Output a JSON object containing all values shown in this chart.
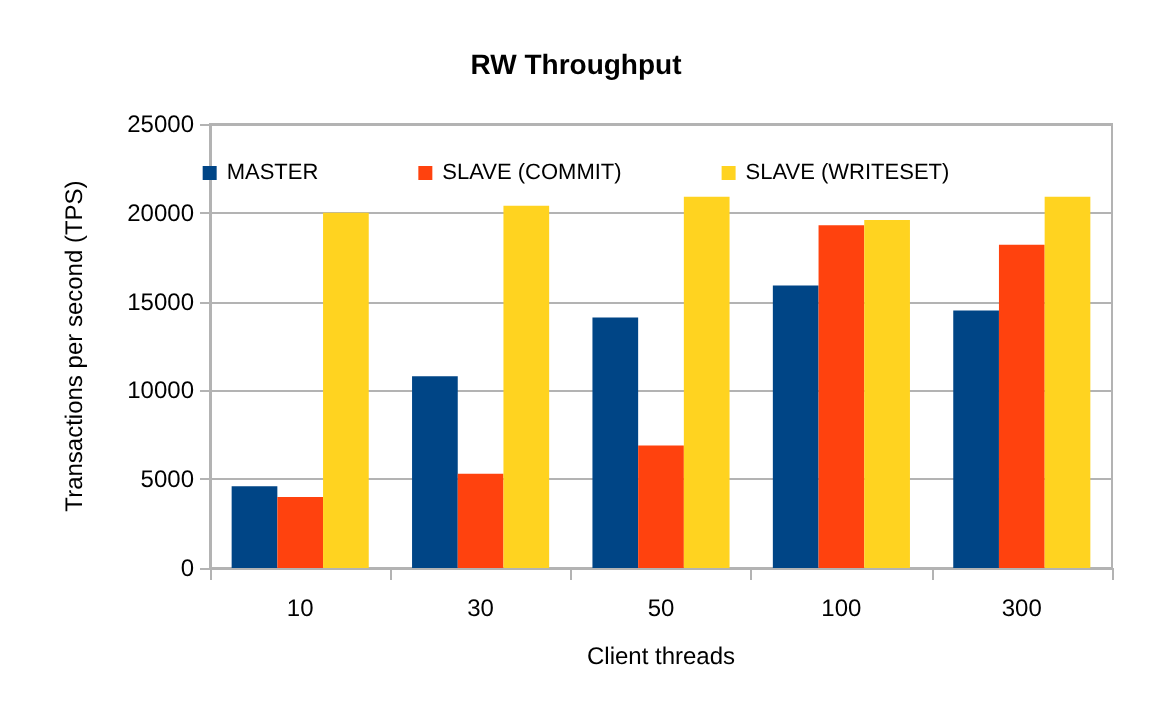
{
  "chart_data": {
    "type": "bar",
    "title": "RW Throughput",
    "xlabel": "Client threads",
    "ylabel": "Transactions per second (TPS)",
    "categories": [
      "10",
      "30",
      "50",
      "100",
      "300"
    ],
    "series": [
      {
        "name": "MASTER",
        "color": "#004586",
        "values": [
          4600,
          10800,
          14100,
          15900,
          14500
        ]
      },
      {
        "name": "SLAVE (COMMIT)",
        "color": "#ff420e",
        "values": [
          4000,
          5300,
          6900,
          19300,
          18200
        ]
      },
      {
        "name": "SLAVE (WRITESET)",
        "color": "#ffd320",
        "values": [
          20000,
          20400,
          20900,
          19600,
          20900
        ]
      }
    ],
    "ylim": [
      0,
      25000
    ],
    "yticks": [
      0,
      5000,
      10000,
      15000,
      20000,
      25000
    ],
    "grid": "y",
    "legend": "top"
  }
}
